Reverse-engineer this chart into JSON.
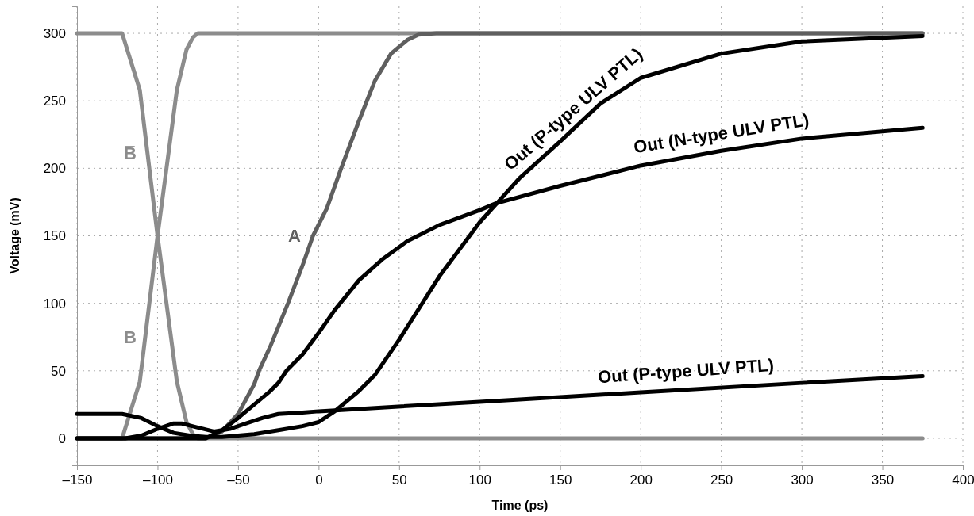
{
  "chart_data": {
    "type": "line",
    "xlabel": "Time (ps)",
    "ylabel": "Voltage (mV)",
    "xlim": [
      -150,
      400
    ],
    "ylim": [
      -20,
      320
    ],
    "xticks": [
      {
        "value": -150,
        "label": "–150"
      },
      {
        "value": -100,
        "label": "–100"
      },
      {
        "value": -50,
        "label": "–50"
      },
      0,
      50,
      100,
      150,
      200,
      250,
      300,
      350,
      400
    ],
    "yticks": [
      0,
      50,
      100,
      150,
      200,
      250,
      300
    ],
    "grid": true,
    "line_style": "solid",
    "series": [
      {
        "name": "B̅",
        "color": "#8c8c8c",
        "x": [
          -150,
          -122,
          -111,
          -100,
          -88,
          -82,
          -78,
          -75,
          375
        ],
        "values": [
          300,
          300,
          258,
          150,
          42,
          12,
          3,
          0,
          0
        ]
      },
      {
        "name": "B",
        "color": "#8c8c8c",
        "x": [
          -150,
          -122,
          -111,
          -100,
          -88,
          -82,
          -78,
          -75,
          375
        ],
        "values": [
          0,
          0,
          42,
          150,
          258,
          288,
          297,
          300,
          300
        ]
      },
      {
        "name": "A",
        "color": "#5f5f5f",
        "x": [
          -150,
          -70,
          -60,
          -50,
          -40,
          -37,
          -30,
          -19,
          -10,
          -3.5,
          5,
          14,
          25,
          35,
          45,
          55,
          62,
          73,
          375
        ],
        "values": [
          0,
          0,
          5,
          18,
          40,
          50,
          68,
          100,
          128,
          150,
          170,
          200,
          235,
          265,
          285,
          295,
          299,
          300,
          300
        ]
      },
      {
        "name": "Out (P-type ULV PTL)",
        "color": "#000000",
        "x": [
          -150,
          -122,
          -110,
          -100,
          -90,
          -80,
          -70,
          -60,
          -50,
          -40,
          -25,
          -10,
          0,
          10,
          25,
          35,
          50,
          75,
          100,
          125,
          150,
          175,
          200,
          250,
          300,
          375
        ],
        "values": [
          18,
          18,
          15,
          9,
          4,
          2,
          1,
          1,
          2,
          3,
          6,
          9,
          12,
          20,
          35,
          47,
          73,
          120,
          160,
          193,
          220,
          248,
          267,
          285,
          294,
          298
        ]
      },
      {
        "name": "Out (N-type ULV PTL)",
        "color": "#000000",
        "x": [
          -150,
          -120,
          -70,
          -60,
          -50,
          -40,
          -30,
          -25,
          -20,
          -10,
          0,
          10,
          25,
          40,
          55,
          75,
          100,
          110,
          150,
          200,
          250,
          300,
          375
        ],
        "values": [
          0,
          0,
          0,
          6,
          15,
          25,
          35,
          41,
          50,
          62,
          78,
          95,
          117,
          133,
          146,
          158,
          169,
          174,
          187,
          202,
          213,
          222,
          230
        ]
      },
      {
        "name": "Out (P-type ULV PTL)",
        "color": "#000000",
        "x": [
          -150,
          -120,
          -110,
          -100,
          -90,
          -85,
          -75,
          -65,
          -55,
          -45,
          -35,
          -25,
          -10,
          0,
          100,
          200,
          300,
          375
        ],
        "values": [
          0,
          0,
          2,
          7,
          11,
          11,
          8,
          5,
          7,
          11,
          15,
          18,
          19,
          20,
          27,
          34,
          41,
          46
        ]
      }
    ]
  }
}
